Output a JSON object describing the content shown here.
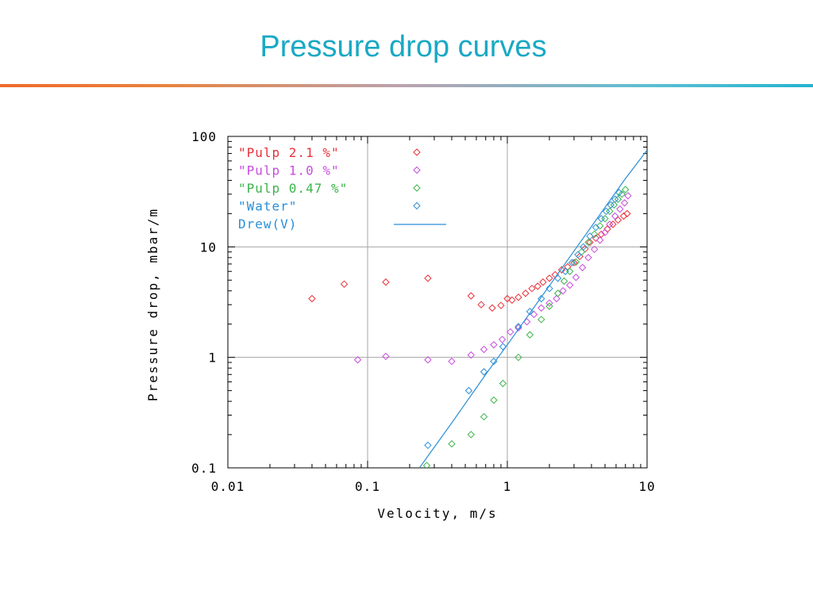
{
  "slide": {
    "title": "Pressure drop curves",
    "accent_color": "#1aa9c4",
    "rule_colors": [
      "#ef6a2a",
      "#25b3cf"
    ]
  },
  "chart_data": {
    "type": "scatter",
    "title": "",
    "xlabel": "Velocity, m/s",
    "ylabel": "Pressure drop, mbar/m",
    "xscale": "log",
    "yscale": "log",
    "xlim": [
      0.01,
      10
    ],
    "ylim": [
      0.1,
      100
    ],
    "xticks": [
      "0.01",
      "0.1",
      "1",
      "10"
    ],
    "yticks": [
      "0.1",
      "1",
      "10",
      "100"
    ],
    "grid": true,
    "legend_position": "top-left",
    "series": [
      {
        "name": "\"Pulp 2.1 %\"",
        "kind": "points",
        "marker": "diamond",
        "color": "#e8323a",
        "x": [
          0.04,
          0.068,
          0.135,
          0.27,
          0.55,
          0.65,
          0.78,
          0.9,
          1.0,
          1.08,
          1.2,
          1.35,
          1.5,
          1.65,
          1.8,
          2.0,
          2.2,
          2.45,
          2.7,
          3.0,
          3.3,
          3.6,
          3.9,
          4.3,
          4.7,
          5.2,
          5.7,
          6.2,
          6.8,
          7.2
        ],
        "y": [
          3.4,
          4.6,
          4.8,
          5.2,
          3.6,
          3.0,
          2.8,
          2.95,
          3.4,
          3.3,
          3.5,
          3.8,
          4.2,
          4.4,
          4.8,
          5.2,
          5.6,
          6.2,
          6.6,
          7.2,
          8.2,
          9.6,
          11,
          12,
          13,
          14.5,
          16,
          17.5,
          19,
          20
        ]
      },
      {
        "name": "\"Pulp 1.0 %\"",
        "kind": "points",
        "marker": "diamond",
        "color": "#c84ddf",
        "x": [
          0.085,
          0.135,
          0.27,
          0.4,
          0.55,
          0.68,
          0.8,
          0.92,
          1.05,
          1.2,
          1.38,
          1.55,
          1.75,
          2.0,
          2.25,
          2.5,
          2.8,
          3.1,
          3.45,
          3.8,
          4.2,
          4.6,
          5.0,
          5.4,
          5.9,
          6.4,
          6.9,
          7.3
        ],
        "y": [
          0.95,
          1.02,
          0.95,
          0.92,
          1.05,
          1.18,
          1.3,
          1.45,
          1.7,
          1.85,
          2.1,
          2.45,
          2.8,
          3.1,
          3.4,
          4.0,
          4.5,
          5.3,
          6.5,
          8.0,
          9.5,
          11.5,
          13.5,
          16,
          19,
          22,
          25,
          29
        ]
      },
      {
        "name": "\"Pulp 0.47 %\"",
        "kind": "points",
        "marker": "diamond",
        "color": "#3cb44b",
        "x": [
          0.265,
          0.4,
          0.55,
          0.68,
          0.8,
          0.93,
          1.2,
          1.45,
          1.75,
          2.0,
          2.3,
          2.55,
          2.8,
          3.1,
          3.4,
          3.8,
          4.2,
          4.6,
          5.0,
          5.4,
          5.8,
          6.2,
          6.6,
          7.0
        ],
        "y": [
          0.105,
          0.165,
          0.2,
          0.29,
          0.41,
          0.58,
          1.0,
          1.6,
          2.2,
          2.9,
          3.8,
          4.9,
          6.0,
          7.3,
          9.0,
          11.0,
          13.0,
          15.5,
          18,
          21,
          24,
          27,
          30,
          33
        ]
      },
      {
        "name": "\"Water\"",
        "kind": "points",
        "marker": "diamond",
        "color": "#2b8fd6",
        "x": [
          0.27,
          0.53,
          0.68,
          0.8,
          0.93,
          1.2,
          1.45,
          1.75,
          2.0,
          2.3,
          2.6,
          2.9,
          3.2,
          3.5,
          3.9,
          4.3,
          4.7,
          5.1,
          5.5,
          5.9,
          6.3
        ],
        "y": [
          0.16,
          0.5,
          0.74,
          0.92,
          1.25,
          1.9,
          2.6,
          3.4,
          4.2,
          5.2,
          6.0,
          7.2,
          8.5,
          10,
          12.5,
          15,
          18,
          21,
          24,
          27,
          31
        ]
      },
      {
        "name": "Drew(V)",
        "kind": "line",
        "color": "#2b8fd6",
        "x": [
          0.235,
          0.4,
          0.7,
          1.0,
          2.0,
          4.0,
          7.0,
          10.0
        ],
        "y": [
          0.1,
          0.255,
          0.7,
          1.3,
          4.45,
          15.3,
          41.5,
          75.0
        ]
      }
    ]
  }
}
